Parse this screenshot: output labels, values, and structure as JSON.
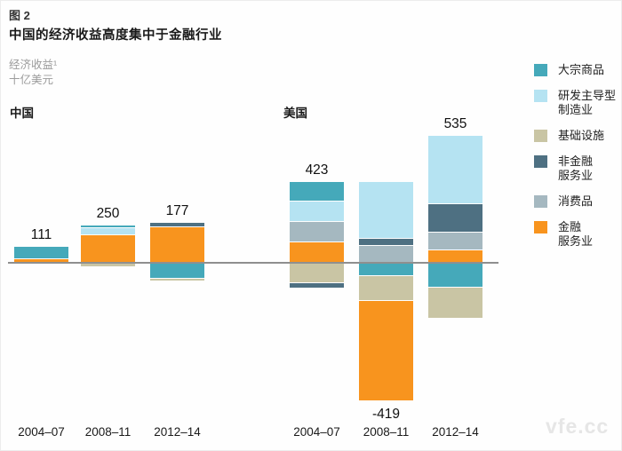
{
  "header": {
    "figure_label": "图 2",
    "title": "中国的经济收益高度集中于金融行业",
    "y_axis_note_line1": "经济收益¹",
    "y_axis_note_line2": "十亿美元"
  },
  "watermark": "vfe.cc",
  "colors": {
    "commodities": "#45a9ba",
    "rd_manufacturing": "#b5e3f2",
    "infrastructure": "#c9c5a4",
    "nonfinancial_services": "#4e7082",
    "consumer_goods": "#a5b8c0",
    "financial_services": "#f8941e",
    "zero_line": "#8f8f8f"
  },
  "legend": {
    "items": [
      {
        "key": "commodities",
        "label": "大宗商品"
      },
      {
        "key": "rd_manufacturing",
        "label": "研发主导型\n制造业"
      },
      {
        "key": "infrastructure",
        "label": "基础设施"
      },
      {
        "key": "nonfinancial_services",
        "label": "非金融\n服务业"
      },
      {
        "key": "consumer_goods",
        "label": "消费品"
      },
      {
        "key": "financial_services",
        "label": "金融\n服务业"
      }
    ]
  },
  "chart_data": {
    "type": "bar",
    "stacked": true,
    "title": "中国的经济收益高度集中于金融行业",
    "ylabel": "经济收益（十亿美元）",
    "legend_position": "right",
    "grid": false,
    "baseline": 0,
    "groups": [
      {
        "label": "中国",
        "bars": [
          {
            "category": "2004–07",
            "net": 111,
            "net_label": "111",
            "segments_above": [
              {
                "key": "commodities",
                "series": "大宗商品",
                "value": 85
              },
              {
                "key": "financial_services",
                "series": "金融服务业",
                "value": 26
              }
            ],
            "segments_below": []
          },
          {
            "category": "2008–11",
            "net": 250,
            "net_label": "250",
            "segments_above": [
              {
                "key": "commodities",
                "series": "大宗商品",
                "value": 15
              },
              {
                "key": "rd_manufacturing",
                "series": "研发主导型制造业",
                "value": 45
              },
              {
                "key": "financial_services",
                "series": "金融服务业",
                "value": 210
              }
            ],
            "segments_below": [
              {
                "key": "infrastructure",
                "series": "基础设施",
                "value": -20
              }
            ]
          },
          {
            "category": "2012–14",
            "net": 177,
            "net_label": "177",
            "segments_above": [
              {
                "key": "nonfinancial_services",
                "series": "非金融服务业",
                "value": 25
              },
              {
                "key": "financial_services",
                "series": "金融服务业",
                "value": 270
              }
            ],
            "segments_below": [
              {
                "key": "commodities",
                "series": "大宗商品",
                "value": -105
              },
              {
                "key": "infrastructure",
                "series": "基础设施",
                "value": -13
              }
            ]
          }
        ]
      },
      {
        "label": "美国",
        "bars": [
          {
            "category": "2004–07",
            "net": 423,
            "net_label": "423",
            "segments_above": [
              {
                "key": "commodities",
                "series": "大宗商品",
                "value": 140
              },
              {
                "key": "rd_manufacturing",
                "series": "研发主导型制造业",
                "value": 150
              },
              {
                "key": "consumer_goods",
                "series": "消费品",
                "value": 150
              },
              {
                "key": "financial_services",
                "series": "金融服务业",
                "value": 155
              }
            ],
            "segments_below": [
              {
                "key": "infrastructure",
                "series": "基础设施",
                "value": -140
              },
              {
                "key": "nonfinancial_services",
                "series": "非金融服务业",
                "value": -32
              }
            ]
          },
          {
            "category": "2008–11",
            "net": -419,
            "net_label": "-419",
            "segments_above": [
              {
                "key": "rd_manufacturing",
                "series": "研发主导型制造业",
                "value": 420
              },
              {
                "key": "nonfinancial_services",
                "series": "非金融服务业",
                "value": 45
              },
              {
                "key": "consumer_goods",
                "series": "消费品",
                "value": 130
              }
            ],
            "segments_below": [
              {
                "key": "commodities",
                "series": "大宗商品",
                "value": -85
              },
              {
                "key": "infrastructure",
                "series": "基础设施",
                "value": -180
              },
              {
                "key": "financial_services",
                "series": "金融服务业",
                "value": -749
              }
            ]
          },
          {
            "category": "2012–14",
            "net": 535,
            "net_label": "535",
            "segments_above": [
              {
                "key": "rd_manufacturing",
                "series": "研发主导型制造业",
                "value": 510
              },
              {
                "key": "nonfinancial_services",
                "series": "非金融服务业",
                "value": 205
              },
              {
                "key": "consumer_goods",
                "series": "消费品",
                "value": 125
              },
              {
                "key": "financial_services",
                "series": "金融服务业",
                "value": 95
              }
            ],
            "segments_below": [
              {
                "key": "commodities",
                "series": "大宗商品",
                "value": -175
              },
              {
                "key": "infrastructure",
                "series": "基础设施",
                "value": -225
              }
            ]
          }
        ]
      }
    ]
  }
}
